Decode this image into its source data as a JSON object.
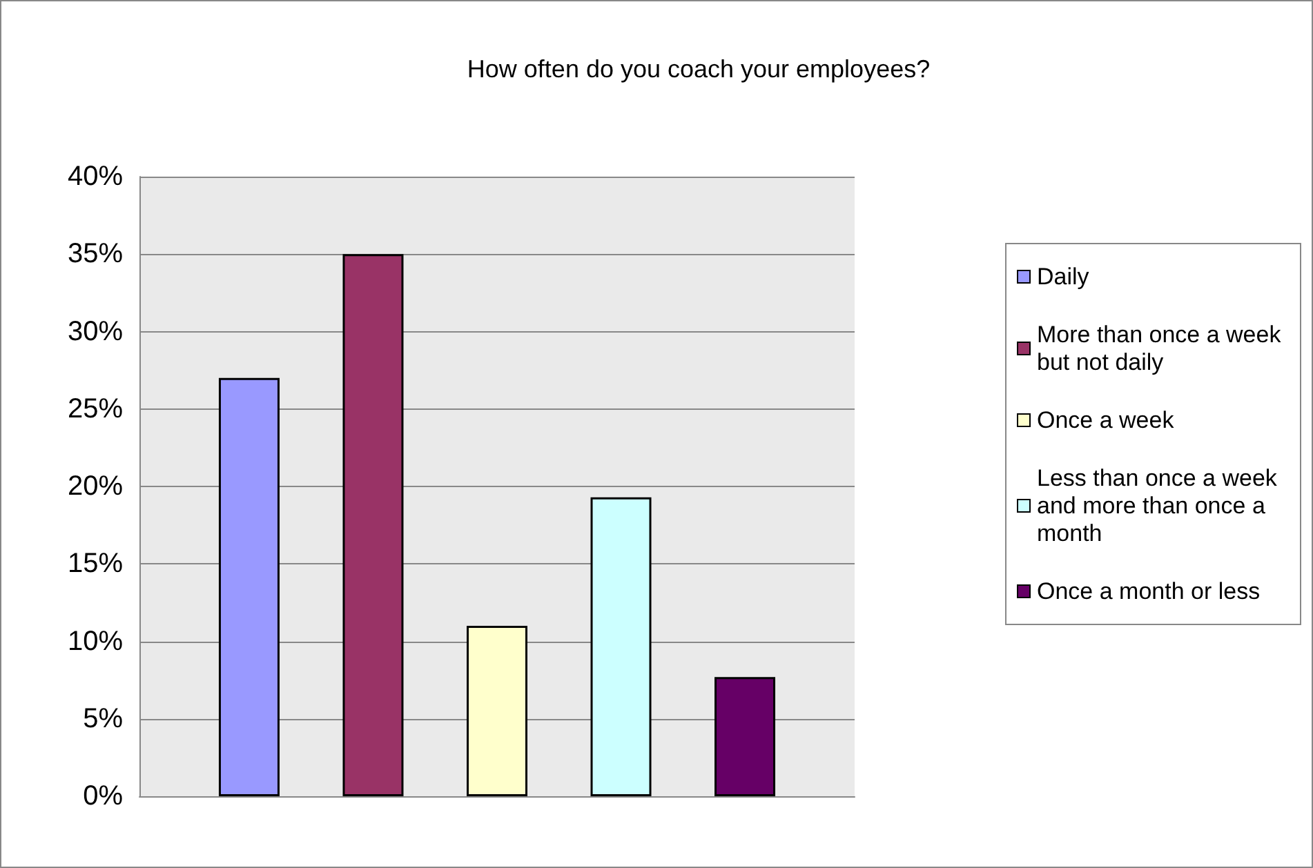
{
  "chart_data": {
    "type": "bar",
    "title": "How often do you coach your employees?",
    "categories": [
      null
    ],
    "series": [
      {
        "name": "Daily",
        "color": "#9999ff",
        "values": [
          27
        ]
      },
      {
        "name": "More than once a week but not daily",
        "color": "#993366",
        "values": [
          35
        ]
      },
      {
        "name": "Once a week",
        "color": "#ffffcc",
        "values": [
          11
        ]
      },
      {
        "name": "Less than once a week and more than once a month",
        "color": "#ccffff",
        "values": [
          19.3
        ]
      },
      {
        "name": "Once a month or less",
        "color": "#660066",
        "values": [
          7.7
        ]
      }
    ],
    "ylim": [
      0,
      40
    ],
    "yticks": [
      {
        "value": 0,
        "label": "0%"
      },
      {
        "value": 5,
        "label": "5%"
      },
      {
        "value": 10,
        "label": "10%"
      },
      {
        "value": 15,
        "label": "15%"
      },
      {
        "value": 20,
        "label": "20%"
      },
      {
        "value": 25,
        "label": "25%"
      },
      {
        "value": 30,
        "label": "30%"
      },
      {
        "value": 35,
        "label": "35%"
      },
      {
        "value": 40,
        "label": "40%"
      }
    ],
    "grid": "y",
    "legend": "right"
  }
}
